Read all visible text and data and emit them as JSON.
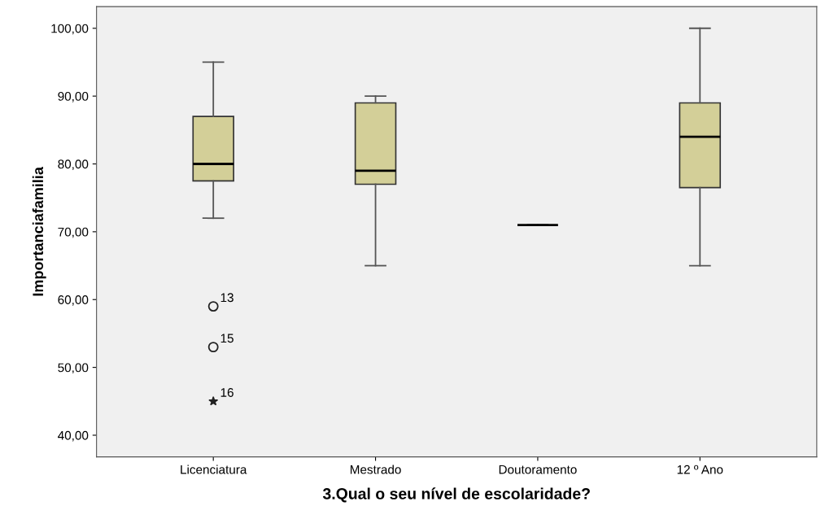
{
  "chart_data": {
    "type": "box",
    "xlabel": "3.Qual o seu nível de escolaridade?",
    "ylabel": "Importanciafamilia",
    "categories": [
      "Licenciatura",
      "Mestrado",
      "Doutoramento",
      "12 º Ano"
    ],
    "color": "#d3cf98",
    "boxes": [
      {
        "low": 72,
        "q1": 77.5,
        "median": 80,
        "q3": 87,
        "high": 95,
        "outliers": [
          59,
          53,
          45
        ]
      },
      {
        "low": 65,
        "q1": 77,
        "median": 79,
        "q3": 89,
        "high": 90
      },
      {
        "low": 71,
        "q1": 71,
        "median": 71,
        "q3": 71,
        "high": 71
      },
      {
        "low": 65,
        "q1": 76.5,
        "median": 84,
        "q3": 89,
        "high": 100
      }
    ],
    "ylim": [
      36.8,
      103.2
    ],
    "yticks": [
      {
        "value": 40,
        "label": "40,00"
      },
      {
        "value": 50,
        "label": "50,00"
      },
      {
        "value": 60,
        "label": "60,00"
      },
      {
        "value": 70,
        "label": "70,00"
      },
      {
        "value": 80,
        "label": "80,00"
      },
      {
        "value": 90,
        "label": "90,00"
      },
      {
        "value": 100,
        "label": "100,00"
      }
    ],
    "annotations": [
      "13",
      "15",
      "16"
    ],
    "grid": false,
    "legend": false
  }
}
